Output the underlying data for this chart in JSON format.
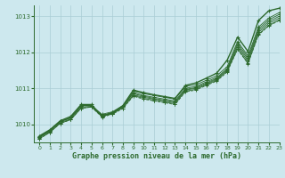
{
  "background_color": "#cde8ee",
  "grid_color": "#aacdd5",
  "line_color": "#2d6a2d",
  "xlabel": "Graphe pression niveau de la mer (hPa)",
  "xlim": [
    -0.5,
    23
  ],
  "ylim": [
    1009.5,
    1013.3
  ],
  "yticks": [
    1010,
    1011,
    1012,
    1013
  ],
  "xticks": [
    0,
    1,
    2,
    3,
    4,
    5,
    6,
    7,
    8,
    9,
    10,
    11,
    12,
    13,
    14,
    15,
    16,
    17,
    18,
    19,
    20,
    21,
    22,
    23
  ],
  "series": [
    [
      1009.65,
      1009.83,
      1010.08,
      1010.18,
      1010.52,
      1010.52,
      1010.22,
      1010.3,
      1010.48,
      1010.92,
      1010.85,
      1010.8,
      1010.75,
      1010.7,
      1011.05,
      1011.1,
      1011.22,
      1011.35,
      1011.6,
      1012.3,
      1011.9,
      1012.7,
      1012.95,
      1013.1
    ],
    [
      1009.65,
      1009.83,
      1010.08,
      1010.18,
      1010.52,
      1010.52,
      1010.25,
      1010.33,
      1010.5,
      1010.88,
      1010.8,
      1010.75,
      1010.7,
      1010.65,
      1011.0,
      1011.05,
      1011.18,
      1011.3,
      1011.55,
      1012.25,
      1011.85,
      1012.65,
      1012.9,
      1013.05
    ],
    [
      1009.65,
      1009.83,
      1010.08,
      1010.18,
      1010.52,
      1010.52,
      1010.28,
      1010.35,
      1010.52,
      1010.85,
      1010.78,
      1010.72,
      1010.67,
      1010.62,
      1010.97,
      1011.02,
      1011.15,
      1011.27,
      1011.52,
      1012.2,
      1011.8,
      1012.6,
      1012.85,
      1013.0
    ],
    [
      1009.63,
      1009.8,
      1010.05,
      1010.15,
      1010.48,
      1010.5,
      1010.25,
      1010.32,
      1010.48,
      1010.82,
      1010.75,
      1010.7,
      1010.65,
      1010.6,
      1010.95,
      1011.0,
      1011.12,
      1011.25,
      1011.5,
      1012.15,
      1011.75,
      1012.55,
      1012.8,
      1012.95
    ],
    [
      1009.6,
      1009.78,
      1010.03,
      1010.13,
      1010.45,
      1010.48,
      1010.22,
      1010.3,
      1010.45,
      1010.8,
      1010.72,
      1010.67,
      1010.62,
      1010.57,
      1010.92,
      1010.97,
      1011.1,
      1011.22,
      1011.47,
      1012.1,
      1011.7,
      1012.5,
      1012.75,
      1012.9
    ]
  ],
  "top_series": [
    1009.68,
    1009.85,
    1010.1,
    1010.22,
    1010.55,
    1010.55,
    1010.22,
    1010.32,
    1010.52,
    1010.95,
    1010.88,
    1010.82,
    1010.77,
    1010.72,
    1011.08,
    1011.15,
    1011.28,
    1011.42,
    1011.78,
    1012.42,
    1012.02,
    1012.88,
    1013.15,
    1013.22
  ],
  "dotted_series": [
    1009.6,
    1009.78,
    1010.03,
    1010.13,
    1010.45,
    1010.48,
    1010.2,
    1010.28,
    1010.44,
    1010.78,
    1010.7,
    1010.65,
    1010.6,
    1010.55,
    1010.9,
    1010.95,
    1011.08,
    1011.2,
    1011.45,
    1012.08,
    1011.68,
    1012.48,
    1012.73,
    1012.88
  ]
}
